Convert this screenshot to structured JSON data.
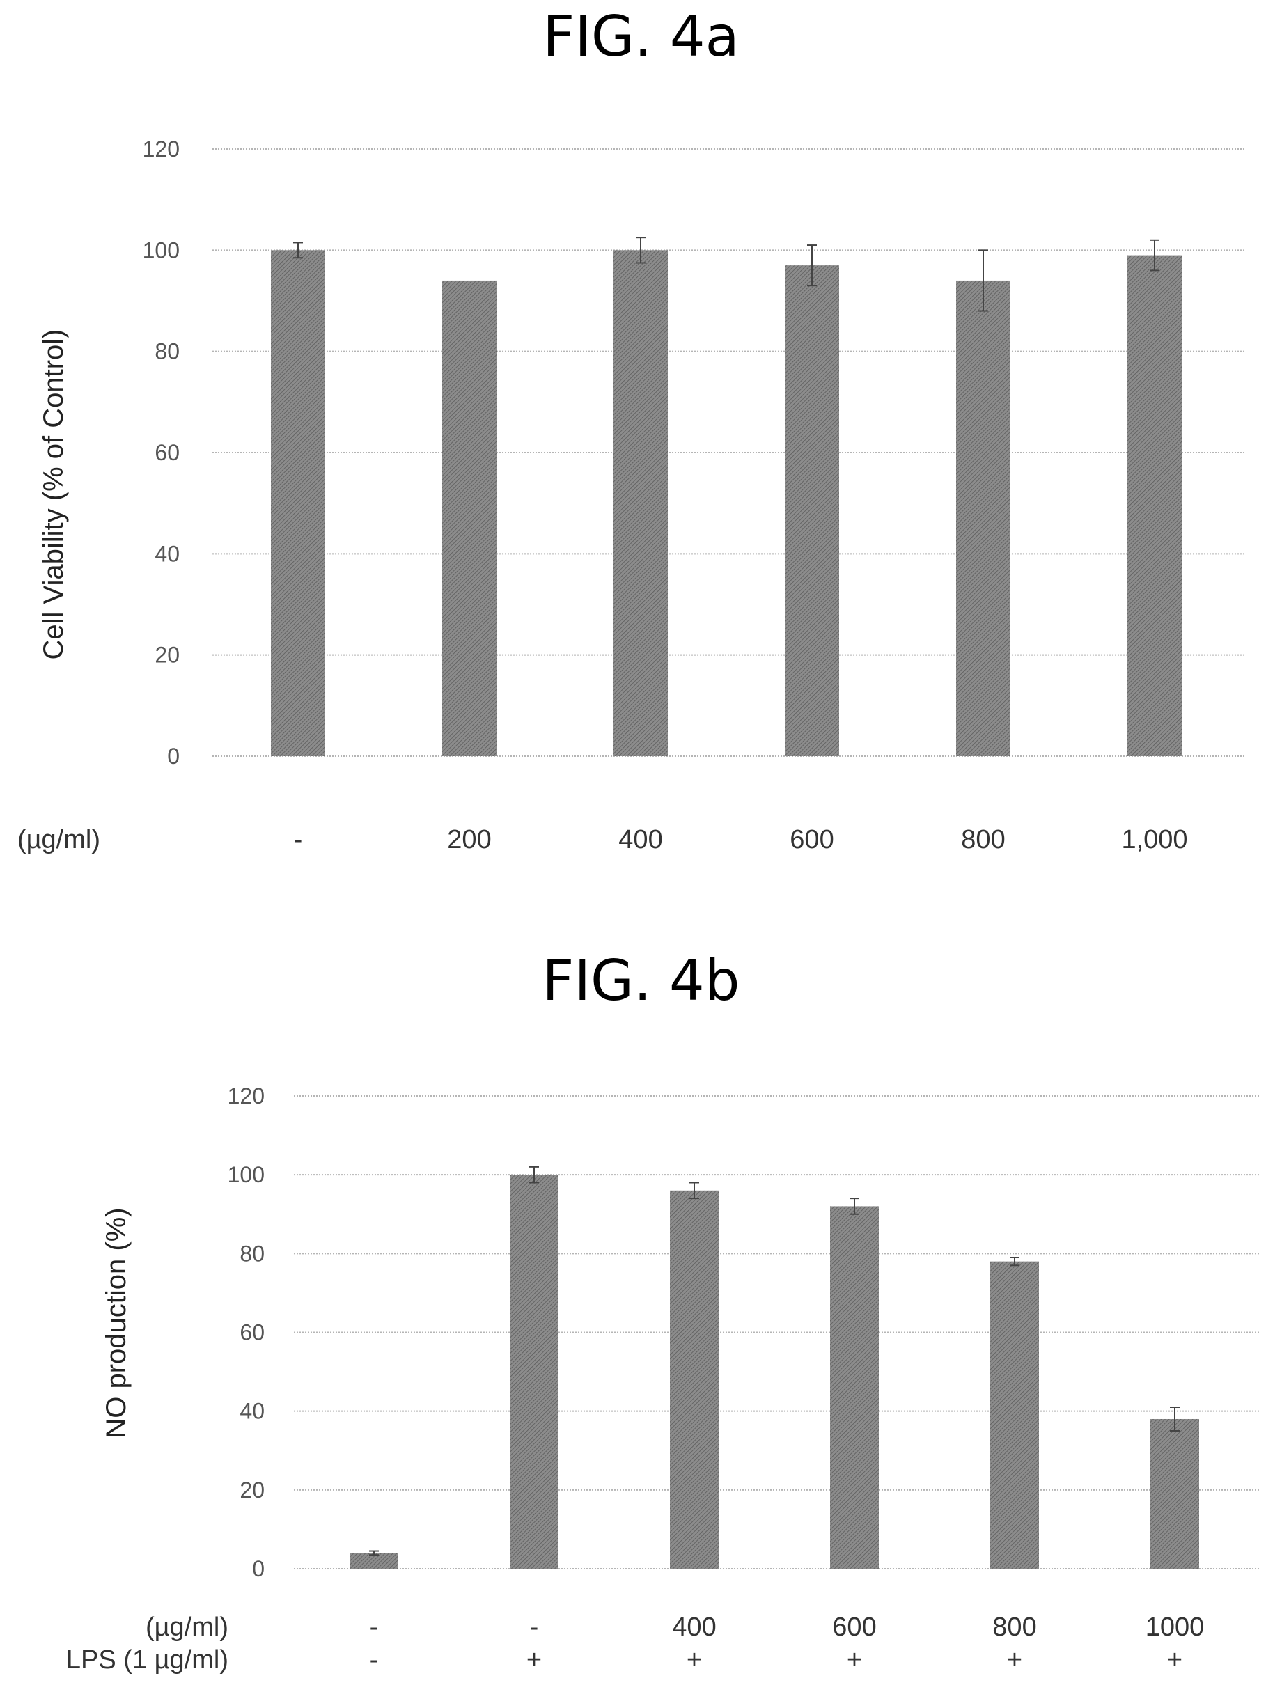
{
  "chart_data": [
    {
      "figure_label": "FIG. 4a",
      "type": "bar",
      "ylabel": "Cell Viability (% of Control)",
      "ylim": [
        0,
        120
      ],
      "yticks": [
        0,
        20,
        40,
        60,
        80,
        100,
        120
      ],
      "grid": true,
      "row_labels": [
        "(µg/ml)"
      ],
      "categories": [
        [
          "-"
        ],
        [
          "200"
        ],
        [
          "400"
        ],
        [
          "600"
        ],
        [
          "800"
        ],
        [
          "1,000"
        ]
      ],
      "values": [
        100,
        94,
        100,
        97,
        94,
        99
      ],
      "errors": [
        1.5,
        0,
        2.5,
        4,
        6,
        3
      ],
      "bar_color": "#8c8c8c"
    },
    {
      "figure_label": "FIG. 4b",
      "type": "bar",
      "ylabel": "NO production (%)",
      "ylim": [
        0,
        120
      ],
      "yticks": [
        0,
        20,
        40,
        60,
        80,
        100,
        120
      ],
      "grid": true,
      "row_labels": [
        "(µg/ml)",
        "LPS (1 µg/ml)"
      ],
      "categories": [
        [
          "-",
          "-"
        ],
        [
          "-",
          "+"
        ],
        [
          "400",
          "+"
        ],
        [
          "600",
          "+"
        ],
        [
          "800",
          "+"
        ],
        [
          "1000",
          "+"
        ]
      ],
      "values": [
        4,
        100,
        96,
        92,
        78,
        38
      ],
      "errors": [
        0.5,
        2,
        2,
        2,
        1,
        3
      ],
      "bar_color": "#8c8c8c"
    }
  ]
}
